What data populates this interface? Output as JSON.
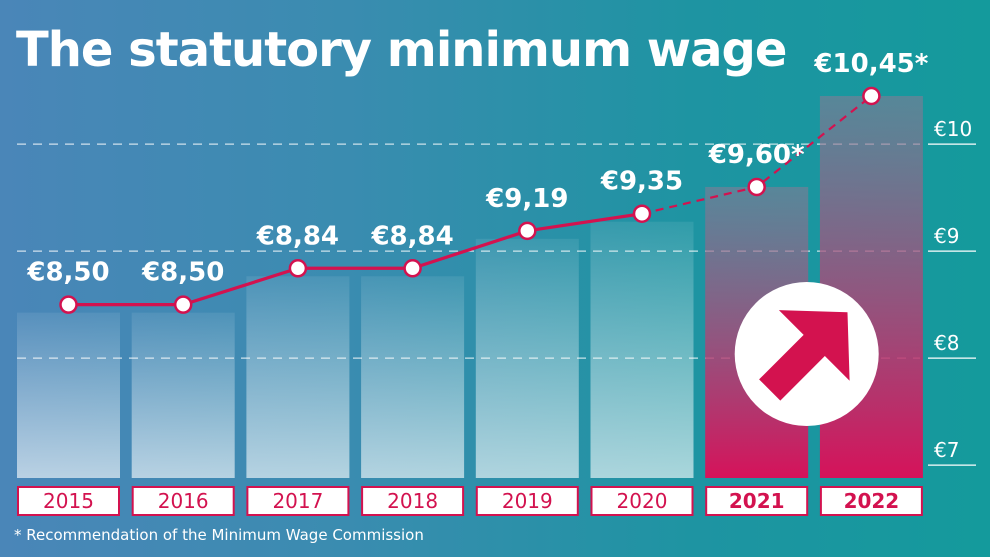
{
  "title": "The statutory minimum wage",
  "footnote": "* Recommendation of the Minimum Wage Commission",
  "colors": {
    "accent": "#d3124f",
    "line": "#d3124f",
    "projected_bar_top": "#8a7a94",
    "projected_bar_bottom": "#d6125a",
    "label_box_fill": "#ffffff",
    "label_box_border": "#d3124f"
  },
  "icons": {
    "arrow": "arrow-up-right-icon"
  },
  "chart_data": {
    "type": "bar",
    "categories": [
      "2015",
      "2016",
      "2017",
      "2018",
      "2019",
      "2020",
      "2021",
      "2022"
    ],
    "values": [
      8.5,
      8.5,
      8.84,
      8.84,
      9.19,
      9.35,
      9.6,
      10.45
    ],
    "data_labels": [
      "€8,50",
      "€8,50",
      "€8,84",
      "€8,84",
      "€9,19",
      "€9,35",
      "€9,60*",
      "€10,45*"
    ],
    "projected": [
      false,
      false,
      false,
      false,
      false,
      false,
      true,
      true
    ],
    "line_overlay": true,
    "y_ticks": [
      7,
      8,
      9,
      10
    ],
    "y_tick_labels": [
      "€7",
      "€8",
      "€9",
      "€10"
    ],
    "ylim": [
      6.88,
      10.45
    ],
    "grid": "dashed",
    "xlabel": "",
    "ylabel": ""
  }
}
